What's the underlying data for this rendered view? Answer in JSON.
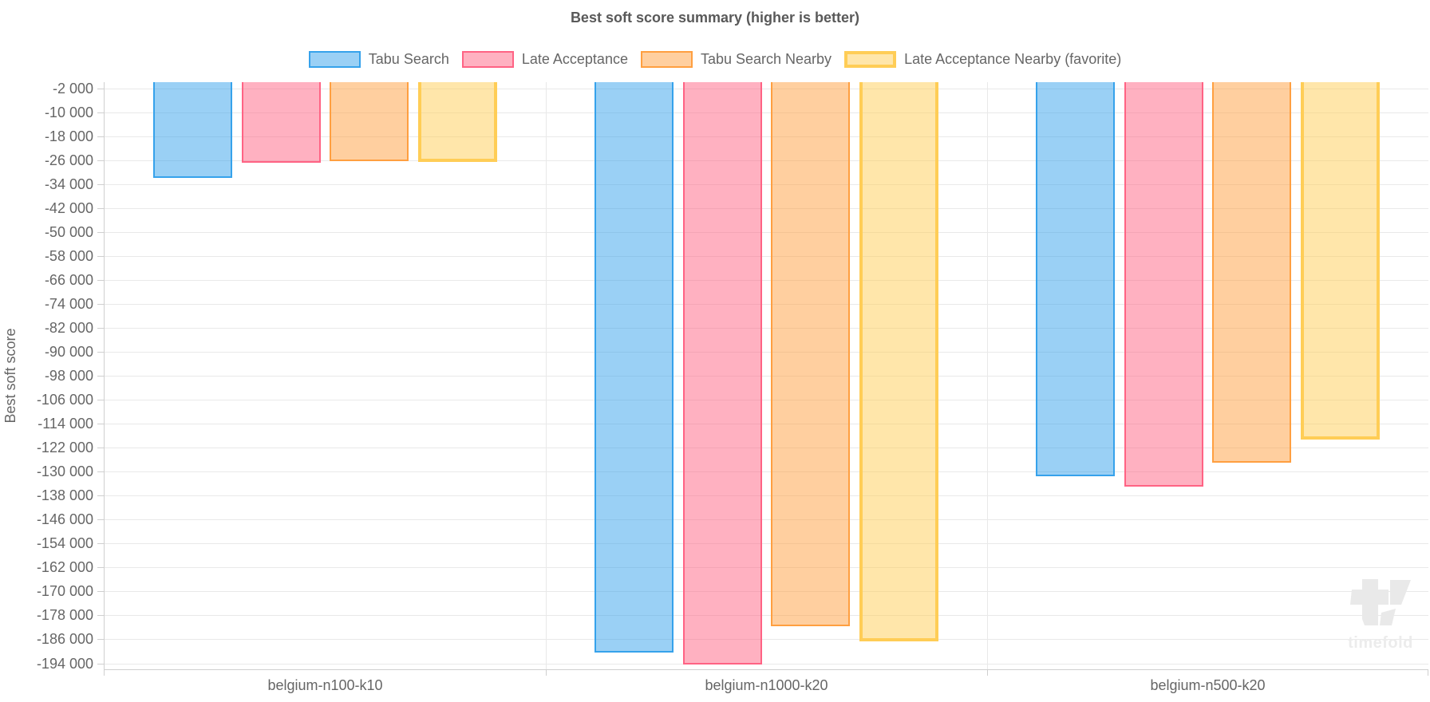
{
  "title": "Best soft score summary (higher is better)",
  "watermark": {
    "text": "timefold"
  },
  "chart_data": {
    "type": "bar",
    "title": "Best soft score summary (higher is better)",
    "xlabel": "",
    "ylabel": "Best soft score",
    "legend_position": "top",
    "grid": true,
    "categories": [
      "belgium-n100-k10",
      "belgium-n1000-k20",
      "belgium-n500-k20"
    ],
    "series": [
      {
        "name": "Tabu Search",
        "border_color": "#36A2EB",
        "fill_color": "rgba(54,162,235,0.5)",
        "border_width": 2,
        "values": [
          -32000,
          -190300,
          -131600
        ]
      },
      {
        "name": "Late Acceptance",
        "border_color": "#FF6384",
        "fill_color": "rgba(255,99,132,0.5)",
        "border_width": 2,
        "values": [
          -26800,
          -194500,
          -135000
        ]
      },
      {
        "name": "Tabu Search Nearby",
        "border_color": "#FF9F40",
        "fill_color": "rgba(255,159,64,0.5)",
        "border_width": 2,
        "values": [
          -26300,
          -181600,
          -127000
        ]
      },
      {
        "name": "Late Acceptance Nearby (favorite)",
        "border_color": "#FFCD56",
        "fill_color": "rgba(255,205,86,0.5)",
        "border_width": 4,
        "values": [
          -26600,
          -186700,
          -119200
        ]
      }
    ],
    "y_axis": {
      "min": -196000,
      "max": 0,
      "tick_step": 8000,
      "tick_label_format": "thousands grouped with space, e.g. -2 000",
      "ticks": [
        -2000,
        -10000,
        -18000,
        -26000,
        -34000,
        -42000,
        -50000,
        -58000,
        -66000,
        -74000,
        -82000,
        -90000,
        -98000,
        -106000,
        -114000,
        -122000,
        -130000,
        -138000,
        -146000,
        -154000,
        -162000,
        -170000,
        -178000,
        -186000,
        -194000
      ]
    }
  },
  "colors": {
    "grid": "#E9E9E9",
    "axis_border": "#CFCFCF",
    "tick_mark": "#CFCFCF",
    "title_text": "#595959",
    "label_text": "#666666",
    "watermark": "#EBEBEB"
  }
}
